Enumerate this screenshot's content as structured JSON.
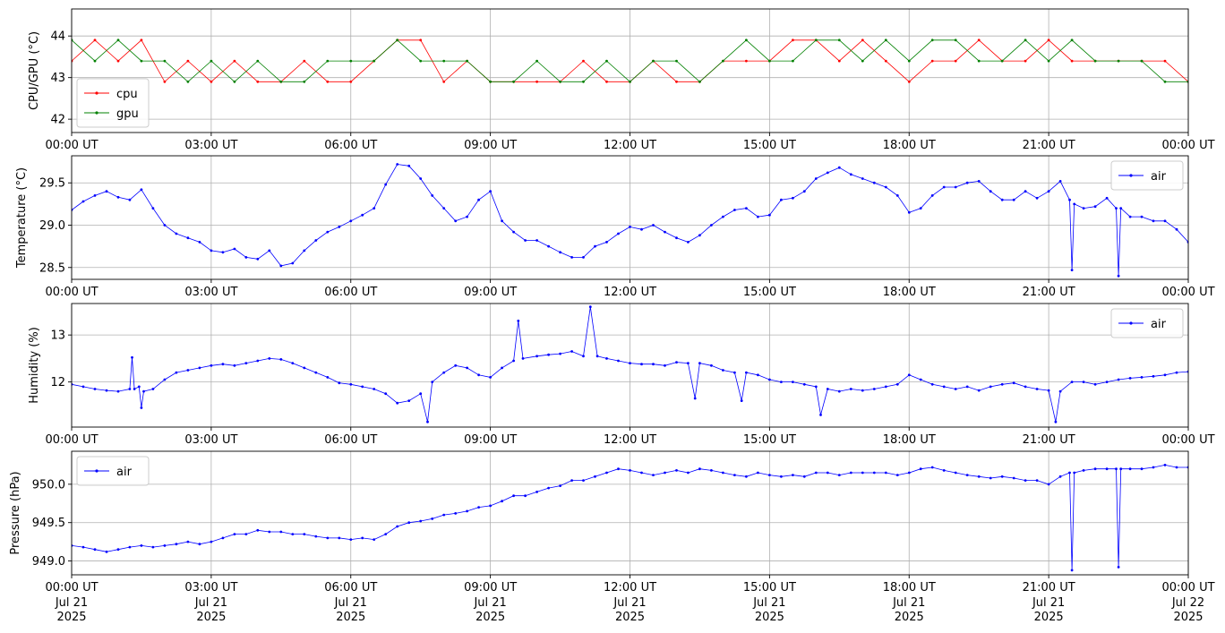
{
  "figure": {
    "background": "#ffffff"
  },
  "x_axis": {
    "ticks": [
      0,
      3,
      6,
      9,
      12,
      15,
      18,
      21,
      24
    ],
    "tick_labels": [
      "00:00 UT",
      "03:00 UT",
      "06:00 UT",
      "09:00 UT",
      "12:00 UT",
      "15:00 UT",
      "18:00 UT",
      "21:00 UT",
      "00:00 UT"
    ],
    "date_labels_line2": [
      "Jul 21",
      "Jul 21",
      "Jul 21",
      "Jul 21",
      "Jul 21",
      "Jul 21",
      "Jul 21",
      "Jul 21",
      "Jul 22"
    ],
    "date_labels_line3": [
      "2025",
      "2025",
      "2025",
      "2025",
      "2025",
      "2025",
      "2025",
      "2025",
      "2025"
    ]
  },
  "chart_data": [
    {
      "type": "line",
      "ylabel": "CPU/GPU (°C)",
      "xlim": [
        0,
        24
      ],
      "ylim": [
        41.68,
        44.65
      ],
      "yticks": [
        42,
        43,
        44
      ],
      "ytick_labels": [
        "42",
        "43",
        "44"
      ],
      "grid": true,
      "legend": {
        "placement": "lower-left"
      },
      "series": [
        {
          "name": "cpu",
          "color": "#ff0000",
          "x": [
            0,
            0.5,
            1.0,
            1.5,
            2.0,
            2.5,
            3.0,
            3.5,
            4.0,
            4.5,
            5.0,
            5.5,
            6.0,
            6.5,
            7.0,
            7.5,
            8.0,
            8.5,
            9.0,
            9.5,
            10.0,
            10.5,
            11.0,
            11.5,
            12.0,
            12.5,
            13.0,
            13.5,
            14.0,
            14.5,
            15.0,
            15.5,
            16.0,
            16.5,
            17.0,
            17.5,
            18.0,
            18.5,
            19.0,
            19.5,
            20.0,
            20.5,
            21.0,
            21.5,
            22.0,
            22.5,
            23.0,
            23.5,
            24.0
          ],
          "y": [
            43.4,
            43.9,
            43.4,
            43.9,
            42.9,
            43.4,
            42.9,
            43.4,
            42.9,
            42.9,
            43.4,
            42.9,
            42.9,
            43.4,
            43.9,
            43.9,
            42.9,
            43.4,
            42.9,
            42.9,
            42.9,
            42.9,
            43.4,
            42.9,
            42.9,
            43.4,
            42.9,
            42.9,
            43.4,
            43.4,
            43.4,
            43.9,
            43.9,
            43.4,
            43.9,
            43.4,
            42.9,
            43.4,
            43.4,
            43.9,
            43.4,
            43.4,
            43.9,
            43.4,
            43.4,
            43.4,
            43.4,
            43.4,
            42.9
          ]
        },
        {
          "name": "gpu",
          "color": "#008000",
          "x": [
            0,
            0.5,
            1.0,
            1.5,
            2.0,
            2.5,
            3.0,
            3.5,
            4.0,
            4.5,
            5.0,
            5.5,
            6.0,
            6.5,
            7.0,
            7.5,
            8.0,
            8.5,
            9.0,
            9.5,
            10.0,
            10.5,
            11.0,
            11.5,
            12.0,
            12.5,
            13.0,
            13.5,
            14.0,
            14.5,
            15.0,
            15.5,
            16.0,
            16.5,
            17.0,
            17.5,
            18.0,
            18.5,
            19.0,
            19.5,
            20.0,
            20.5,
            21.0,
            21.5,
            22.0,
            22.5,
            23.0,
            23.5,
            24.0
          ],
          "y": [
            43.9,
            43.4,
            43.9,
            43.4,
            43.4,
            42.9,
            43.4,
            42.9,
            43.4,
            42.9,
            42.9,
            43.4,
            43.4,
            43.4,
            43.9,
            43.4,
            43.4,
            43.4,
            42.9,
            42.9,
            43.4,
            42.9,
            42.9,
            43.4,
            42.9,
            43.4,
            43.4,
            42.9,
            43.4,
            43.9,
            43.4,
            43.4,
            43.9,
            43.9,
            43.4,
            43.9,
            43.4,
            43.9,
            43.9,
            43.4,
            43.4,
            43.9,
            43.4,
            43.9,
            43.4,
            43.4,
            43.4,
            42.9,
            42.9
          ]
        }
      ]
    },
    {
      "type": "line",
      "ylabel": "Temperature (°C)",
      "xlim": [
        0,
        24
      ],
      "ylim": [
        28.36,
        29.82
      ],
      "yticks": [
        28.5,
        29.0,
        29.5
      ],
      "ytick_labels": [
        "28.5",
        "29.0",
        "29.5"
      ],
      "grid": true,
      "legend": {
        "placement": "top-right"
      },
      "series": [
        {
          "name": "air",
          "color": "#0000ff",
          "x": [
            0,
            0.25,
            0.5,
            0.75,
            1.0,
            1.25,
            1.5,
            1.75,
            2.0,
            2.25,
            2.5,
            2.75,
            3.0,
            3.25,
            3.5,
            3.75,
            4.0,
            4.25,
            4.5,
            4.75,
            5.0,
            5.25,
            5.5,
            5.75,
            6.0,
            6.25,
            6.5,
            6.75,
            7.0,
            7.25,
            7.5,
            7.75,
            8.0,
            8.25,
            8.5,
            8.75,
            9.0,
            9.25,
            9.5,
            9.75,
            10.0,
            10.25,
            10.5,
            10.75,
            11.0,
            11.25,
            11.5,
            11.75,
            12.0,
            12.25,
            12.5,
            12.75,
            13.0,
            13.25,
            13.5,
            13.75,
            14.0,
            14.25,
            14.5,
            14.75,
            15.0,
            15.25,
            15.5,
            15.75,
            16.0,
            16.25,
            16.5,
            16.75,
            17.0,
            17.25,
            17.5,
            17.75,
            18.0,
            18.25,
            18.5,
            18.75,
            19.0,
            19.25,
            19.5,
            19.75,
            20.0,
            20.25,
            20.5,
            20.75,
            21.0,
            21.25,
            21.45,
            21.5,
            21.55,
            21.75,
            22.0,
            22.25,
            22.45,
            22.5,
            22.55,
            22.75,
            23.0,
            23.25,
            23.5,
            23.75,
            24.0
          ],
          "y": [
            29.18,
            29.28,
            29.35,
            29.4,
            29.33,
            29.3,
            29.42,
            29.2,
            29.0,
            28.9,
            28.85,
            28.8,
            28.7,
            28.68,
            28.72,
            28.62,
            28.6,
            28.7,
            28.52,
            28.55,
            28.7,
            28.82,
            28.92,
            28.98,
            29.05,
            29.12,
            29.2,
            29.48,
            29.72,
            29.7,
            29.55,
            29.35,
            29.2,
            29.05,
            29.1,
            29.3,
            29.4,
            29.05,
            28.92,
            28.82,
            28.82,
            28.75,
            28.68,
            28.62,
            28.62,
            28.75,
            28.8,
            28.9,
            28.98,
            28.95,
            29.0,
            28.92,
            28.85,
            28.8,
            28.88,
            29.0,
            29.1,
            29.18,
            29.2,
            29.1,
            29.12,
            29.3,
            29.32,
            29.4,
            29.55,
            29.62,
            29.68,
            29.6,
            29.55,
            29.5,
            29.45,
            29.35,
            29.15,
            29.2,
            29.35,
            29.45,
            29.45,
            29.5,
            29.52,
            29.4,
            29.3,
            29.3,
            29.4,
            29.32,
            29.4,
            29.52,
            29.3,
            28.47,
            29.25,
            29.2,
            29.22,
            29.32,
            29.2,
            28.4,
            29.2,
            29.1,
            29.1,
            29.05,
            29.05,
            28.95,
            28.8
          ]
        }
      ]
    },
    {
      "type": "line",
      "ylabel": "Humidity (%)",
      "xlim": [
        0,
        24
      ],
      "ylim": [
        11.04,
        13.67
      ],
      "yticks": [
        12,
        13
      ],
      "ytick_labels": [
        "12",
        "13"
      ],
      "grid": true,
      "legend": {
        "placement": "top-right"
      },
      "series": [
        {
          "name": "air",
          "color": "#0000ff",
          "x": [
            0,
            0.25,
            0.5,
            0.75,
            1.0,
            1.25,
            1.3,
            1.35,
            1.45,
            1.5,
            1.55,
            1.75,
            2.0,
            2.25,
            2.5,
            2.75,
            3.0,
            3.25,
            3.5,
            3.75,
            4.0,
            4.25,
            4.5,
            4.75,
            5.0,
            5.25,
            5.5,
            5.75,
            6.0,
            6.25,
            6.5,
            6.75,
            7.0,
            7.25,
            7.5,
            7.65,
            7.75,
            8.0,
            8.25,
            8.5,
            8.75,
            9.0,
            9.25,
            9.5,
            9.6,
            9.7,
            10.0,
            10.25,
            10.5,
            10.75,
            11.0,
            11.15,
            11.3,
            11.5,
            11.75,
            12.0,
            12.25,
            12.5,
            12.75,
            13.0,
            13.25,
            13.4,
            13.5,
            13.75,
            14.0,
            14.25,
            14.4,
            14.5,
            14.75,
            15.0,
            15.25,
            15.5,
            15.75,
            16.0,
            16.1,
            16.25,
            16.5,
            16.75,
            17.0,
            17.25,
            17.5,
            17.75,
            18.0,
            18.25,
            18.5,
            18.75,
            19.0,
            19.25,
            19.5,
            19.75,
            20.0,
            20.25,
            20.5,
            20.75,
            21.0,
            21.15,
            21.25,
            21.5,
            21.75,
            22.0,
            22.25,
            22.5,
            22.75,
            23.0,
            23.25,
            23.5,
            23.75,
            24.0
          ],
          "y": [
            11.95,
            11.9,
            11.85,
            11.82,
            11.8,
            11.85,
            12.52,
            11.85,
            11.9,
            11.45,
            11.8,
            11.85,
            12.05,
            12.2,
            12.25,
            12.3,
            12.35,
            12.38,
            12.35,
            12.4,
            12.45,
            12.5,
            12.48,
            12.4,
            12.3,
            12.2,
            12.1,
            11.98,
            11.95,
            11.9,
            11.85,
            11.75,
            11.55,
            11.6,
            11.75,
            11.15,
            12.0,
            12.2,
            12.35,
            12.3,
            12.15,
            12.1,
            12.3,
            12.45,
            13.3,
            12.5,
            12.55,
            12.58,
            12.6,
            12.65,
            12.55,
            13.6,
            12.55,
            12.5,
            12.45,
            12.4,
            12.38,
            12.38,
            12.35,
            12.42,
            12.4,
            11.65,
            12.4,
            12.35,
            12.25,
            12.2,
            11.6,
            12.2,
            12.15,
            12.05,
            12.0,
            12.0,
            11.95,
            11.9,
            11.3,
            11.85,
            11.8,
            11.85,
            11.82,
            11.85,
            11.9,
            11.95,
            12.15,
            12.05,
            11.95,
            11.9,
            11.85,
            11.9,
            11.82,
            11.9,
            11.95,
            11.98,
            11.9,
            11.85,
            11.82,
            11.15,
            11.8,
            12.0,
            12.0,
            11.95,
            12.0,
            12.05,
            12.08,
            12.1,
            12.12,
            12.15,
            12.2,
            12.22
          ]
        }
      ]
    },
    {
      "type": "line",
      "ylabel": "Pressure (hPa)",
      "xlim": [
        0,
        24
      ],
      "ylim": [
        948.82,
        950.43
      ],
      "yticks": [
        949.0,
        949.5,
        950.0
      ],
      "ytick_labels": [
        "949.0",
        "949.5",
        "950.0"
      ],
      "grid": true,
      "legend": {
        "placement": "top-left"
      },
      "series": [
        {
          "name": "air",
          "color": "#0000ff",
          "x": [
            0,
            0.25,
            0.5,
            0.75,
            1.0,
            1.25,
            1.5,
            1.75,
            2.0,
            2.25,
            2.5,
            2.75,
            3.0,
            3.25,
            3.5,
            3.75,
            4.0,
            4.25,
            4.5,
            4.75,
            5.0,
            5.25,
            5.5,
            5.75,
            6.0,
            6.25,
            6.5,
            6.75,
            7.0,
            7.25,
            7.5,
            7.75,
            8.0,
            8.25,
            8.5,
            8.75,
            9.0,
            9.25,
            9.5,
            9.75,
            10.0,
            10.25,
            10.5,
            10.75,
            11.0,
            11.25,
            11.5,
            11.75,
            12.0,
            12.25,
            12.5,
            12.75,
            13.0,
            13.25,
            13.5,
            13.75,
            14.0,
            14.25,
            14.5,
            14.75,
            15.0,
            15.25,
            15.5,
            15.75,
            16.0,
            16.25,
            16.5,
            16.75,
            17.0,
            17.25,
            17.5,
            17.75,
            18.0,
            18.25,
            18.5,
            18.75,
            19.0,
            19.25,
            19.5,
            19.75,
            20.0,
            20.25,
            20.5,
            20.75,
            21.0,
            21.25,
            21.45,
            21.5,
            21.55,
            21.75,
            22.0,
            22.25,
            22.45,
            22.5,
            22.55,
            22.75,
            23.0,
            23.25,
            23.5,
            23.75,
            24.0
          ],
          "y": [
            949.2,
            949.18,
            949.15,
            949.12,
            949.15,
            949.18,
            949.2,
            949.18,
            949.2,
            949.22,
            949.25,
            949.22,
            949.25,
            949.3,
            949.35,
            949.35,
            949.4,
            949.38,
            949.38,
            949.35,
            949.35,
            949.32,
            949.3,
            949.3,
            949.28,
            949.3,
            949.28,
            949.35,
            949.45,
            949.5,
            949.52,
            949.55,
            949.6,
            949.62,
            949.65,
            949.7,
            949.72,
            949.78,
            949.85,
            949.85,
            949.9,
            949.95,
            949.98,
            950.05,
            950.05,
            950.1,
            950.15,
            950.2,
            950.18,
            950.15,
            950.12,
            950.15,
            950.18,
            950.15,
            950.2,
            950.18,
            950.15,
            950.12,
            950.1,
            950.15,
            950.12,
            950.1,
            950.12,
            950.1,
            950.15,
            950.15,
            950.12,
            950.15,
            950.15,
            950.15,
            950.15,
            950.12,
            950.15,
            950.2,
            950.22,
            950.18,
            950.15,
            950.12,
            950.1,
            950.08,
            950.1,
            950.08,
            950.05,
            950.05,
            950.0,
            950.1,
            950.15,
            948.88,
            950.15,
            950.18,
            950.2,
            950.2,
            950.2,
            948.92,
            950.2,
            950.2,
            950.2,
            950.22,
            950.25,
            950.22,
            950.22
          ]
        }
      ]
    }
  ]
}
